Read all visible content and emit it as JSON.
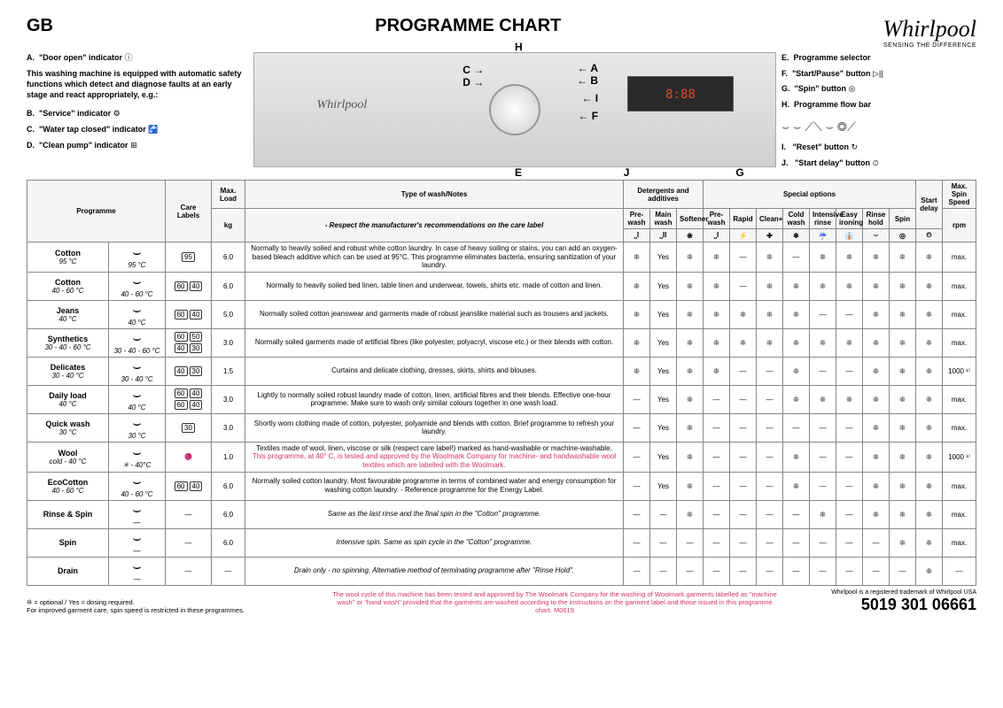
{
  "header": {
    "region": "GB",
    "title": "PROGRAMME CHART",
    "brand": "Whirlpool",
    "brand_tagline": "SENSING THE DIFFERENCE"
  },
  "legend_left": {
    "A": "\"Door open\" indicator",
    "safety_note": "This washing machine is equipped with automatic safety functions which detect and diagnose faults at an early stage and react appropriately, e.g.:",
    "B": "\"Service\" indicator",
    "C": "\"Water tap closed\" indicator",
    "D": "\"Clean pump\" indicator"
  },
  "legend_right": {
    "E": "Programme selector",
    "F": "\"Start/Pause\" button",
    "G": "\"Spin\" button",
    "H": "Programme flow bar",
    "I": "\"Reset\" button",
    "J": "\"Start delay\" button"
  },
  "panel_labels": [
    "A",
    "B",
    "C",
    "D",
    "E",
    "F",
    "G",
    "H",
    "I",
    "J"
  ],
  "display_text": "8:88",
  "table": {
    "headers": {
      "programme": "Programme",
      "care_labels": "Care Labels",
      "max_load": "Max. Load",
      "max_load_unit": "kg",
      "type_notes": "Type of wash/Notes",
      "type_notes_sub": "- Respect the manufacturer's recommendations on the care label",
      "detergents_group": "Detergents and additives",
      "options_group": "Special options",
      "start_delay": "Start delay",
      "max_spin": "Max. Spin Speed",
      "max_spin_unit": "rpm",
      "det_cols": [
        "Pre-wash",
        "Main wash",
        "Softener"
      ],
      "opt_cols": [
        "Pre-wash",
        "Rapid",
        "Clean+",
        "Cold wash",
        "Intensive rinse",
        "Easy ironing",
        "Rinse hold",
        "Spin"
      ]
    },
    "symbols": {
      "opt": "❊",
      "dash": "—",
      "yes": "Yes"
    },
    "rows": [
      {
        "name": "Cotton",
        "temp": "95 °C",
        "care_text": "95 °C",
        "care_codes": [
          "95"
        ],
        "load": "6.0",
        "notes": "Normally to heavily soiled and robust white cotton laundry. In case of heavy soiling or stains, you can add an oxygen-based bleach additive which can be used at 95°C. This programme eliminates bacteria, ensuring sanitization of your laundry.",
        "det": [
          "opt",
          "yes",
          "opt"
        ],
        "opts": [
          "opt",
          "dash",
          "opt",
          "dash",
          "opt",
          "opt",
          "opt",
          "opt"
        ],
        "delay": "opt",
        "spin": "max."
      },
      {
        "name": "Cotton",
        "temp": "40 - 60 °C",
        "care_text": "40 - 60 °C",
        "care_codes": [
          "60",
          "40"
        ],
        "load": "6.0",
        "notes": "Normally to heavily soiled bed linen, table linen and underwear, towels, shirts etc. made of cotton and linen.",
        "det": [
          "opt",
          "yes",
          "opt"
        ],
        "opts": [
          "opt",
          "dash",
          "opt",
          "opt",
          "opt",
          "opt",
          "opt",
          "opt"
        ],
        "delay": "opt",
        "spin": "max."
      },
      {
        "name": "Jeans",
        "temp": "40 °C",
        "care_text": "40 °C",
        "care_codes": [
          "60",
          "40"
        ],
        "load": "5.0",
        "notes": "Normally soiled cotton jeanswear and garments made of robust jeanslike material such as trousers and jackets.",
        "det": [
          "opt",
          "yes",
          "opt"
        ],
        "opts": [
          "opt",
          "opt",
          "opt",
          "opt",
          "dash",
          "dash",
          "opt",
          "opt"
        ],
        "delay": "opt",
        "spin": "max."
      },
      {
        "name": "Synthetics",
        "temp": "30 - 40 - 60 °C",
        "care_text": "30 - 40 - 60 °C",
        "care_codes": [
          "60",
          "50",
          "40",
          "30"
        ],
        "load": "3.0",
        "notes": "Normally soiled garments made of artificial fibres (like polyester, polyacryl, viscose etc.) or their blends with cotton.",
        "det": [
          "opt",
          "yes",
          "opt"
        ],
        "opts": [
          "opt",
          "opt",
          "opt",
          "opt",
          "opt",
          "opt",
          "opt",
          "opt"
        ],
        "delay": "opt",
        "spin": "max."
      },
      {
        "name": "Delicates",
        "temp": "30 - 40 °C",
        "care_text": "30 - 40 °C",
        "care_codes": [
          "40",
          "30"
        ],
        "load": "1.5",
        "notes": "Curtains and delicate clothing, dresses, skirts, shirts and blouses.",
        "det": [
          "opt",
          "yes",
          "opt"
        ],
        "opts": [
          "opt",
          "dash",
          "dash",
          "opt",
          "dash",
          "dash",
          "opt",
          "opt"
        ],
        "delay": "opt",
        "spin": "1000 ¹⁾"
      },
      {
        "name": "Daily load",
        "temp": "40 °C",
        "care_text": "40 °C",
        "care_codes": [
          "60",
          "40",
          "60",
          "40"
        ],
        "load": "3.0",
        "notes": "Lightly to normally soiled robust laundry made of cotton, linen, artificial fibres and their blends. Effective one-hour programme. Make sure to wash only similar colours together in one wash load.",
        "det": [
          "dash",
          "yes",
          "opt"
        ],
        "opts": [
          "dash",
          "dash",
          "dash",
          "opt",
          "opt",
          "opt",
          "opt",
          "opt"
        ],
        "delay": "opt",
        "spin": "max."
      },
      {
        "name": "Quick wash",
        "temp": "30 °C",
        "care_text": "30 °C",
        "care_codes": [
          "30"
        ],
        "load": "3.0",
        "notes": "Shortly worn clothing made of cotton, polyester, polyamide and blends with cotton. Brief programme to refresh your laundry.",
        "det": [
          "dash",
          "yes",
          "opt"
        ],
        "opts": [
          "dash",
          "dash",
          "dash",
          "dash",
          "dash",
          "dash",
          "opt",
          "opt"
        ],
        "delay": "opt",
        "spin": "max."
      },
      {
        "name": "Wool",
        "temp": "cold - 40 °C",
        "care_text": "✳ - 40°C",
        "care_codes": [],
        "load": "1.0",
        "notes": "Textiles made of wool, linen, viscose or silk (respect care label!) marked as hand-washable or machine-washable.",
        "notes_red": "This programme, at 40° C, is tested and approved by the Woolmark Company for machine- and handwashable wool textiles which are labelled with the Woolmark.",
        "det": [
          "dash",
          "yes",
          "opt"
        ],
        "opts": [
          "dash",
          "dash",
          "dash",
          "opt",
          "dash",
          "dash",
          "opt",
          "opt"
        ],
        "delay": "opt",
        "spin": "1000 ¹⁾"
      },
      {
        "name": "EcoCotton",
        "temp": "40 - 60 °C",
        "care_text": "40 - 60 °C",
        "care_codes": [
          "60",
          "40"
        ],
        "load": "6.0",
        "notes": "Normally soiled cotton laundry. Most favourable programme in terms of combined water and energy consumption for washing cotton laundry. - Reference programme for the Energy Label.",
        "det": [
          "dash",
          "yes",
          "opt"
        ],
        "opts": [
          "dash",
          "dash",
          "dash",
          "opt",
          "dash",
          "dash",
          "opt",
          "opt"
        ],
        "delay": "opt",
        "spin": "max."
      },
      {
        "name": "Rinse & Spin",
        "temp": "",
        "care_text": "—",
        "care_codes": [],
        "load": "6.0",
        "notes_italic": "Same as the last rinse and the final spin in the \"Cotton\" programme.",
        "det": [
          "dash",
          "dash",
          "opt"
        ],
        "opts": [
          "dash",
          "dash",
          "dash",
          "dash",
          "opt",
          "dash",
          "opt",
          "opt"
        ],
        "delay": "opt",
        "spin": "max."
      },
      {
        "name": "Spin",
        "temp": "",
        "care_text": "—",
        "care_codes": [],
        "load": "6.0",
        "notes_italic": "Intensive spin. Same as spin cycle in the \"Cotton\" programme.",
        "det": [
          "dash",
          "dash",
          "dash"
        ],
        "opts": [
          "dash",
          "dash",
          "dash",
          "dash",
          "dash",
          "dash",
          "dash",
          "opt"
        ],
        "delay": "opt",
        "spin": "max."
      },
      {
        "name": "Drain",
        "temp": "",
        "care_text": "—",
        "care_codes": [],
        "load": "—",
        "notes_italic": "Drain only - no spinning. Alternative method of terminating programme after \"Rinse Hold\".",
        "det": [
          "dash",
          "dash",
          "dash"
        ],
        "opts": [
          "dash",
          "dash",
          "dash",
          "dash",
          "dash",
          "dash",
          "dash",
          "dash"
        ],
        "delay": "opt",
        "spin": "—"
      }
    ]
  },
  "footer": {
    "left": "❊ = optional / Yes = dosing required.\nFor improved garment care, spin speed is restricted in these programmes.",
    "mid": "The wool cycle of this machine has been tested and approved by The Woolmark Company for the washing of Woolmark garments labelled as \"machine wash\" or \"hand wash\" provided that the garments are washed according to the instructions on the garment label and those issued in this programme chart. M0619",
    "trademark": "Whirlpool is a registered trademark of Whirlpool USA",
    "partnum": "5019 301 06661"
  },
  "colors": {
    "border": "#888888",
    "red_text": "#d6336c",
    "header_bg": "#f5f5f5"
  }
}
